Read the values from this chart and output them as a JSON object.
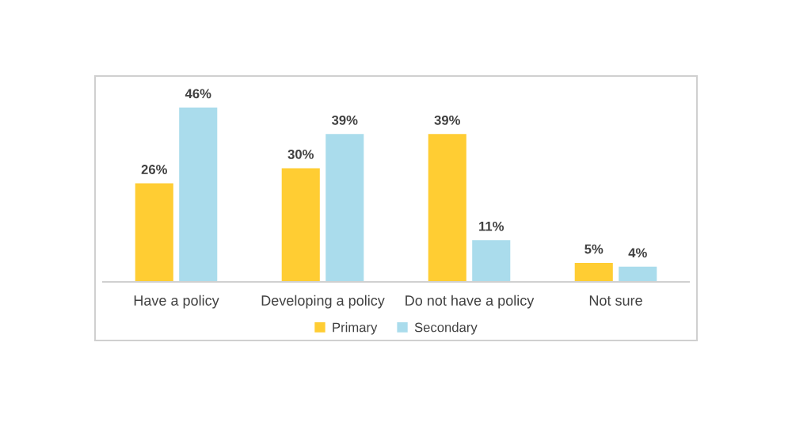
{
  "chart_data": {
    "type": "bar",
    "categories": [
      "Have a policy",
      "Developing a policy",
      "Do not have a policy",
      "Not sure"
    ],
    "series": [
      {
        "name": "Primary",
        "color": "#ffcd33",
        "values": [
          26,
          30,
          39,
          5
        ],
        "value_labels": [
          "26%",
          "30%",
          "39%",
          "5%"
        ]
      },
      {
        "name": "Secondary",
        "color": "#aadcec",
        "values": [
          46,
          39,
          11,
          4
        ],
        "value_labels": [
          "46%",
          "39%",
          "11%",
          "4%"
        ]
      }
    ],
    "legend": "bottom",
    "grid": false
  }
}
